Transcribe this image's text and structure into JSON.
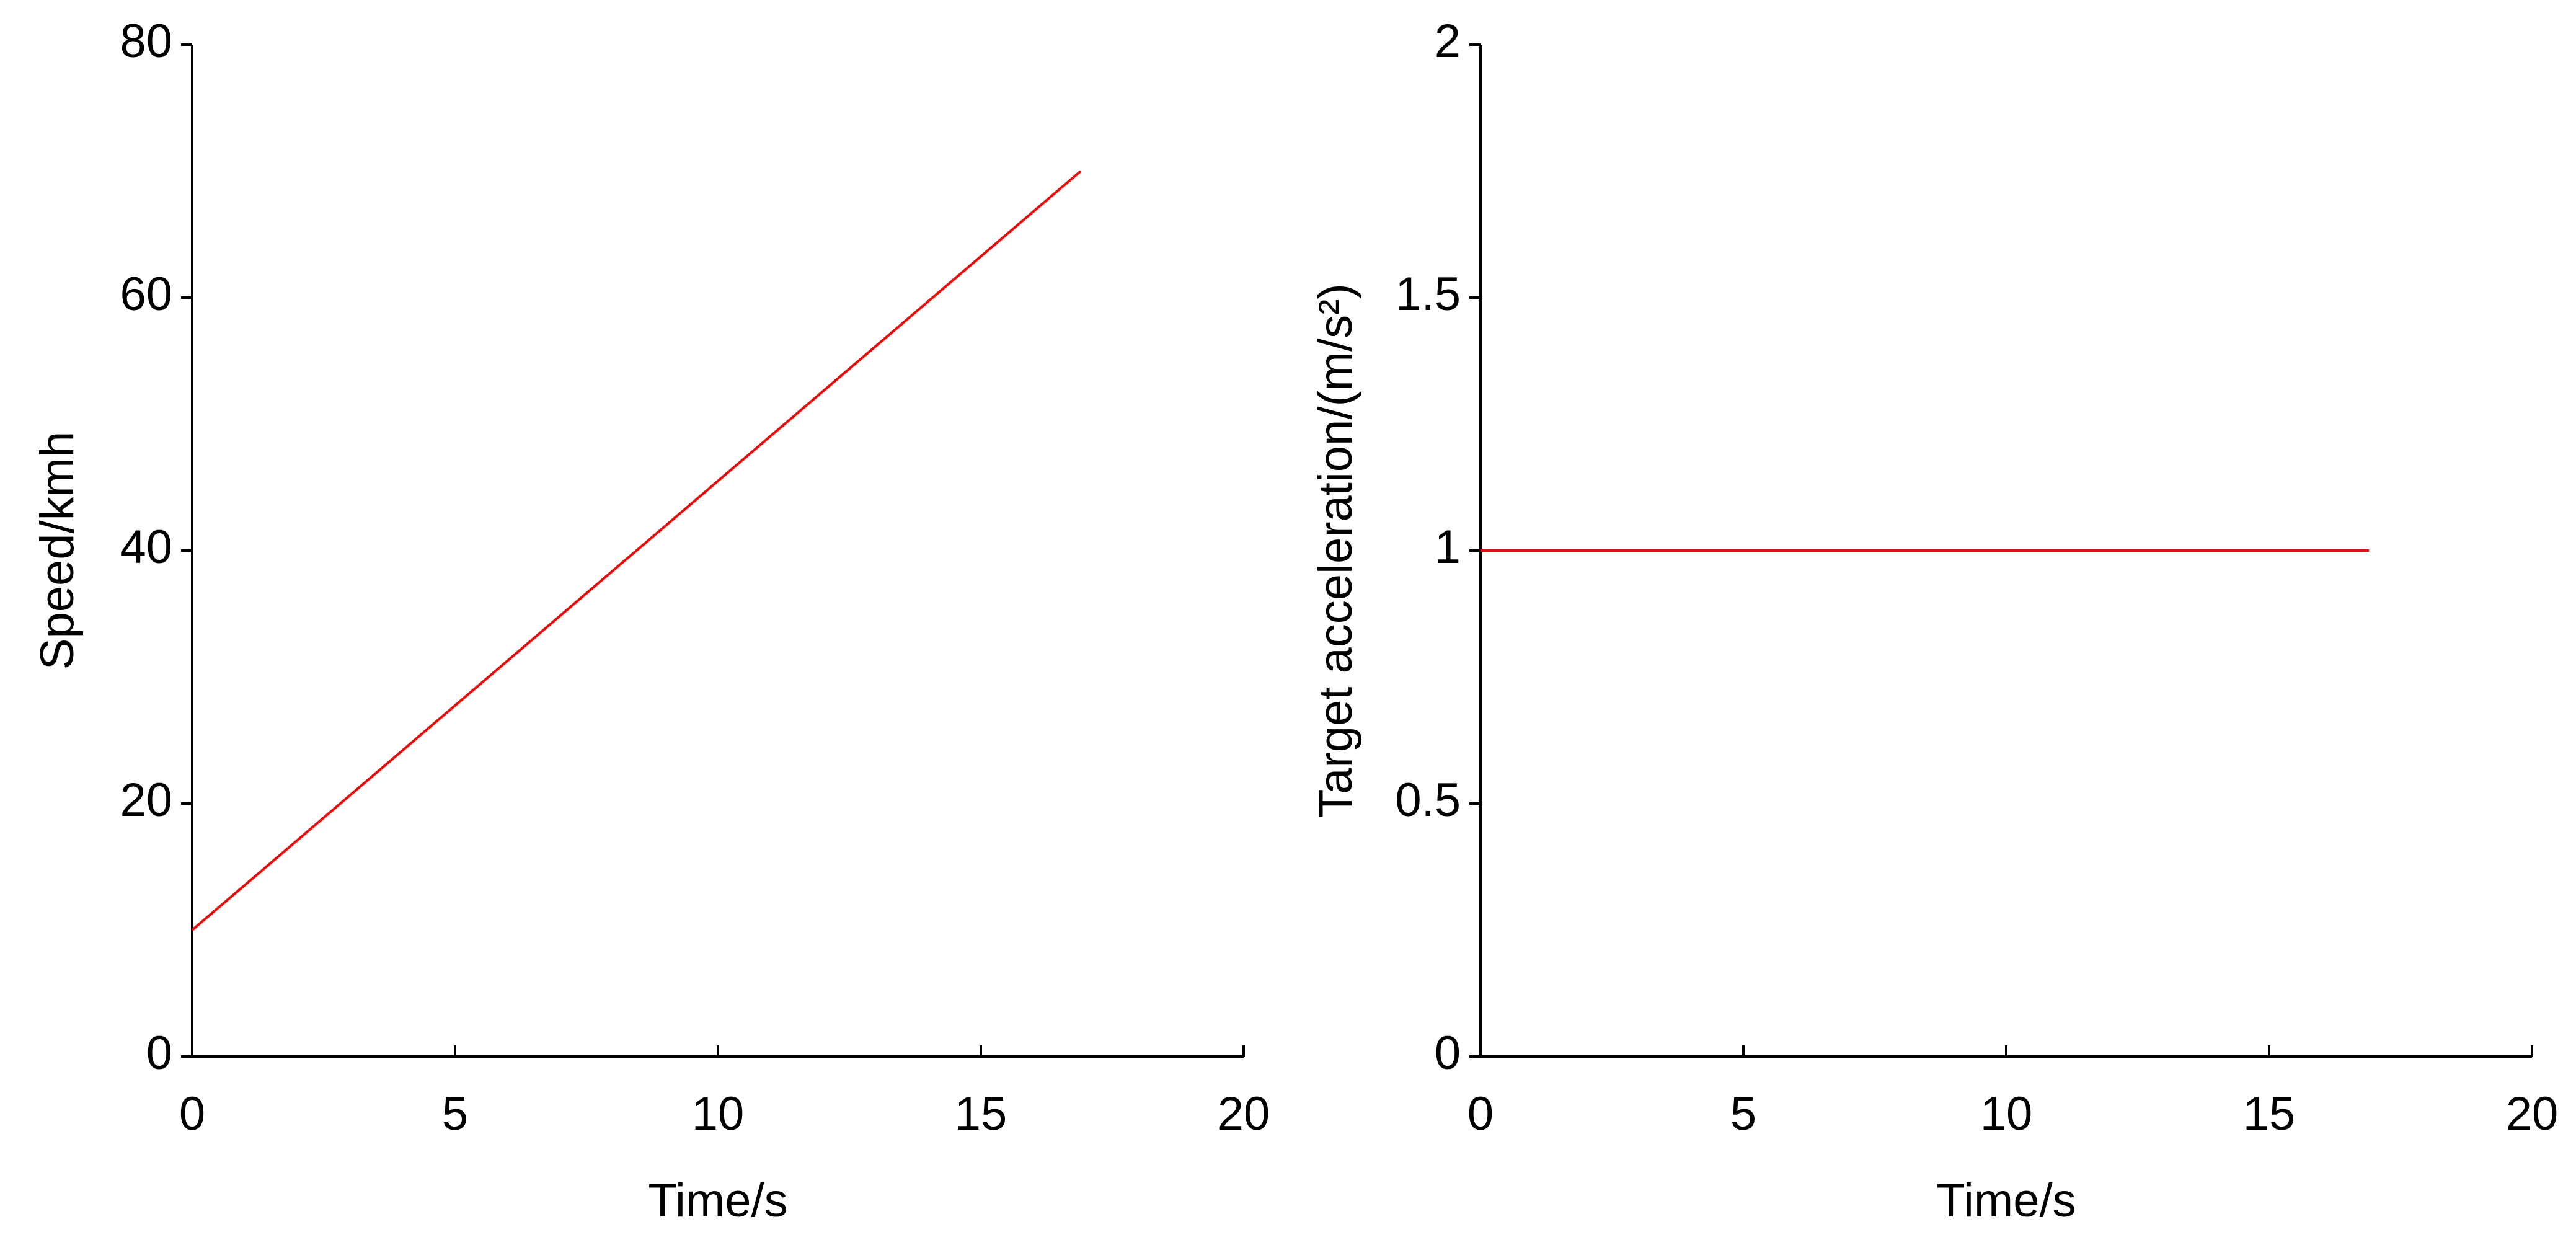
{
  "chart_data": [
    {
      "type": "line",
      "x_label": "Time/s",
      "y_label": "Speed/kmh",
      "x": [
        0,
        16.9
      ],
      "series": [
        {
          "color": "#ff0000",
          "values": [
            10,
            70
          ]
        }
      ],
      "xlim": [
        0,
        20
      ],
      "xticks": [
        0,
        5,
        10,
        15,
        20
      ],
      "ylim": [
        0,
        80
      ],
      "yticks": [
        0,
        20,
        40,
        60,
        80
      ],
      "grid": false
    },
    {
      "type": "line",
      "x_label": "Time/s",
      "y_label": "Target acceleration/(m/s²)",
      "x": [
        0,
        16.9
      ],
      "series": [
        {
          "color": "#ff0000",
          "values": [
            1,
            1
          ]
        }
      ],
      "xlim": [
        0,
        20
      ],
      "xticks": [
        0,
        5,
        10,
        15,
        20
      ],
      "ylim": [
        0,
        2
      ],
      "yticks": [
        0,
        0.5,
        1,
        1.5,
        2
      ],
      "grid": false
    }
  ]
}
